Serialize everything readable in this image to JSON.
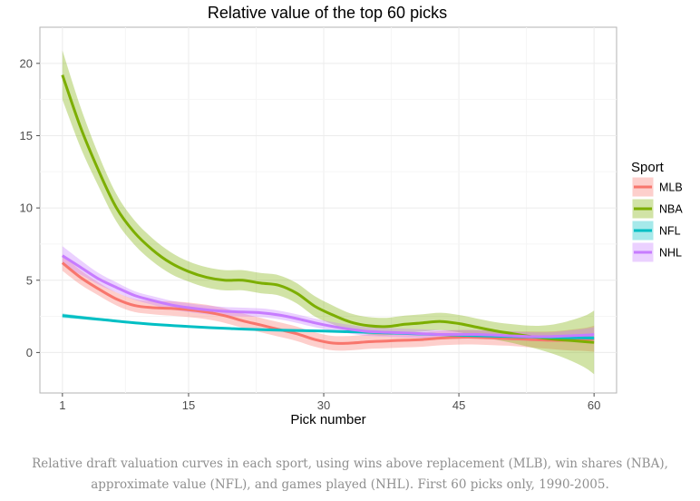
{
  "chart_data": {
    "type": "line",
    "title": "Relative value of the top 60 picks",
    "xlabel": "Pick number",
    "ylabel": "",
    "xlim": [
      -1.5,
      62.5
    ],
    "ylim": [
      -2.8,
      22.5
    ],
    "x_ticks": [
      1,
      15,
      30,
      45,
      60
    ],
    "y_ticks": [
      0,
      5,
      10,
      15,
      20
    ],
    "grid": true,
    "legend": {
      "title": "Sport",
      "position": "right"
    },
    "series": [
      {
        "name": "MLB",
        "color": "#f8766d",
        "x": [
          1,
          3,
          5,
          7,
          9,
          11,
          13,
          15,
          17,
          19,
          21,
          23,
          25,
          27,
          29,
          31,
          33,
          35,
          37,
          39,
          41,
          43,
          45,
          47,
          49,
          51,
          53,
          55,
          57,
          59,
          60
        ],
        "y": [
          6.2,
          5.2,
          4.4,
          3.7,
          3.25,
          3.1,
          3.05,
          2.95,
          2.8,
          2.55,
          2.2,
          1.9,
          1.6,
          1.3,
          0.9,
          0.65,
          0.65,
          0.75,
          0.8,
          0.85,
          0.9,
          1.0,
          1.05,
          1.05,
          1.0,
          0.95,
          0.9,
          0.85,
          0.85,
          0.9,
          0.95
        ],
        "band": [
          0.55,
          0.5,
          0.45,
          0.45,
          0.45,
          0.45,
          0.5,
          0.5,
          0.5,
          0.5,
          0.5,
          0.5,
          0.5,
          0.5,
          0.5,
          0.5,
          0.5,
          0.5,
          0.5,
          0.5,
          0.5,
          0.5,
          0.5,
          0.5,
          0.5,
          0.5,
          0.55,
          0.6,
          0.7,
          0.8,
          0.9
        ]
      },
      {
        "name": "NBA",
        "color": "#7cae00",
        "x": [
          1,
          3,
          5,
          7,
          9,
          11,
          13,
          15,
          17,
          19,
          21,
          23,
          25,
          27,
          29,
          31,
          33,
          35,
          37,
          39,
          41,
          43,
          45,
          47,
          49,
          51,
          53,
          55,
          57,
          59,
          60
        ],
        "y": [
          19.2,
          15.6,
          12.6,
          10.0,
          8.3,
          7.1,
          6.2,
          5.6,
          5.2,
          5.0,
          5.0,
          4.8,
          4.65,
          4.1,
          3.2,
          2.6,
          2.1,
          1.85,
          1.8,
          1.95,
          2.05,
          2.15,
          2.0,
          1.75,
          1.5,
          1.3,
          1.1,
          0.95,
          0.85,
          0.75,
          0.7
        ],
        "band": [
          1.7,
          1.4,
          1.1,
          0.95,
          0.85,
          0.8,
          0.75,
          0.7,
          0.7,
          0.7,
          0.7,
          0.7,
          0.7,
          0.7,
          0.7,
          0.65,
          0.6,
          0.6,
          0.6,
          0.6,
          0.6,
          0.6,
          0.6,
          0.6,
          0.6,
          0.65,
          0.75,
          0.95,
          1.3,
          1.8,
          2.2
        ]
      },
      {
        "name": "NFL",
        "color": "#00bfc4",
        "x": [
          1,
          5,
          10,
          15,
          20,
          25,
          30,
          35,
          40,
          45,
          50,
          55,
          60
        ],
        "y": [
          2.55,
          2.3,
          2.0,
          1.8,
          1.65,
          1.55,
          1.48,
          1.4,
          1.3,
          1.2,
          1.12,
          1.05,
          1.0
        ],
        "band": [
          0.15,
          0.1,
          0.08,
          0.07,
          0.07,
          0.07,
          0.07,
          0.07,
          0.07,
          0.07,
          0.08,
          0.1,
          0.15
        ]
      },
      {
        "name": "NHL",
        "color": "#c77cff",
        "x": [
          1,
          3,
          5,
          7,
          9,
          11,
          13,
          15,
          17,
          19,
          21,
          23,
          25,
          27,
          29,
          31,
          33,
          35,
          37,
          39,
          41,
          43,
          45,
          47,
          49,
          51,
          53,
          55,
          57,
          59,
          60
        ],
        "y": [
          6.7,
          5.9,
          5.1,
          4.5,
          3.95,
          3.6,
          3.3,
          3.1,
          2.95,
          2.85,
          2.8,
          2.75,
          2.6,
          2.35,
          2.05,
          1.8,
          1.6,
          1.45,
          1.4,
          1.35,
          1.3,
          1.25,
          1.25,
          1.25,
          1.2,
          1.15,
          1.1,
          1.1,
          1.15,
          1.2,
          1.25
        ],
        "band": [
          0.65,
          0.5,
          0.4,
          0.35,
          0.3,
          0.3,
          0.3,
          0.3,
          0.3,
          0.3,
          0.3,
          0.3,
          0.3,
          0.3,
          0.3,
          0.3,
          0.3,
          0.3,
          0.3,
          0.3,
          0.3,
          0.3,
          0.3,
          0.3,
          0.3,
          0.3,
          0.3,
          0.3,
          0.35,
          0.45,
          0.5
        ]
      }
    ]
  },
  "caption": "Relative draft valuation curves in each sport, using wins above replacement (MLB), win shares (NBA), approximate value (NFL), and games played (NHL). First 60 picks only, 1990-2005."
}
